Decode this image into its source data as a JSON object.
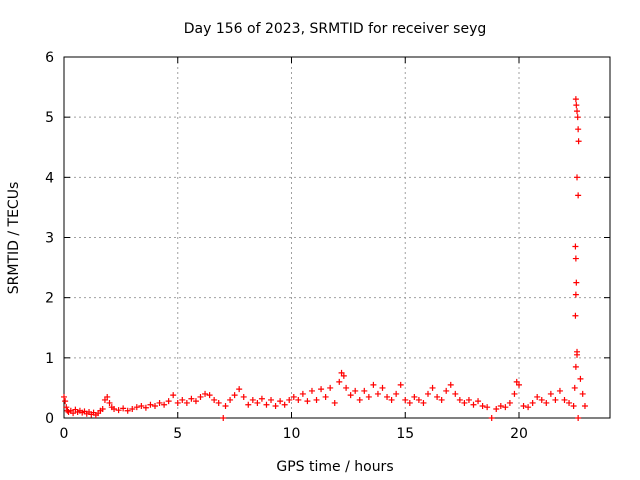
{
  "chart_data": {
    "type": "scatter",
    "title": "Day 156 of 2023, SRMTID for receiver seyg",
    "xlabel": "GPS time / hours",
    "ylabel": "SRMTID / TECUs",
    "xlim": [
      0,
      24
    ],
    "ylim": [
      0,
      6
    ],
    "xticks": [
      0,
      5,
      10,
      15,
      20
    ],
    "yticks": [
      0,
      1,
      2,
      3,
      4,
      5,
      6
    ],
    "grid": true,
    "marker": "plus",
    "series": [
      {
        "color": "#ff0000",
        "points": [
          [
            0.0,
            0.35
          ],
          [
            0.05,
            0.28
          ],
          [
            0.1,
            0.18
          ],
          [
            0.15,
            0.12
          ],
          [
            0.2,
            0.1
          ],
          [
            0.3,
            0.12
          ],
          [
            0.4,
            0.08
          ],
          [
            0.5,
            0.14
          ],
          [
            0.6,
            0.1
          ],
          [
            0.7,
            0.12
          ],
          [
            0.8,
            0.09
          ],
          [
            0.9,
            0.11
          ],
          [
            1.0,
            0.07
          ],
          [
            1.1,
            0.1
          ],
          [
            1.2,
            0.06
          ],
          [
            1.3,
            0.09
          ],
          [
            1.4,
            0.05
          ],
          [
            1.5,
            0.08
          ],
          [
            1.6,
            0.12
          ],
          [
            1.7,
            0.15
          ],
          [
            1.8,
            0.3
          ],
          [
            1.9,
            0.35
          ],
          [
            2.0,
            0.25
          ],
          [
            2.1,
            0.18
          ],
          [
            2.2,
            0.15
          ],
          [
            2.4,
            0.13
          ],
          [
            2.6,
            0.16
          ],
          [
            2.8,
            0.12
          ],
          [
            3.0,
            0.15
          ],
          [
            3.2,
            0.18
          ],
          [
            3.4,
            0.2
          ],
          [
            3.6,
            0.17
          ],
          [
            3.8,
            0.22
          ],
          [
            4.0,
            0.2
          ],
          [
            4.2,
            0.25
          ],
          [
            4.4,
            0.22
          ],
          [
            4.6,
            0.28
          ],
          [
            4.8,
            0.38
          ],
          [
            5.0,
            0.25
          ],
          [
            5.2,
            0.3
          ],
          [
            5.4,
            0.25
          ],
          [
            5.6,
            0.32
          ],
          [
            5.8,
            0.28
          ],
          [
            6.0,
            0.35
          ],
          [
            6.2,
            0.4
          ],
          [
            6.4,
            0.38
          ],
          [
            6.6,
            0.3
          ],
          [
            6.8,
            0.25
          ],
          [
            7.0,
            0.0
          ],
          [
            7.1,
            0.2
          ],
          [
            7.3,
            0.3
          ],
          [
            7.5,
            0.38
          ],
          [
            7.7,
            0.48
          ],
          [
            7.9,
            0.35
          ],
          [
            8.1,
            0.22
          ],
          [
            8.3,
            0.3
          ],
          [
            8.5,
            0.25
          ],
          [
            8.7,
            0.32
          ],
          [
            8.9,
            0.22
          ],
          [
            9.1,
            0.3
          ],
          [
            9.3,
            0.2
          ],
          [
            9.5,
            0.28
          ],
          [
            9.7,
            0.22
          ],
          [
            9.9,
            0.3
          ],
          [
            10.1,
            0.35
          ],
          [
            10.3,
            0.3
          ],
          [
            10.5,
            0.4
          ],
          [
            10.7,
            0.28
          ],
          [
            10.9,
            0.45
          ],
          [
            11.1,
            0.3
          ],
          [
            11.3,
            0.48
          ],
          [
            11.5,
            0.35
          ],
          [
            11.7,
            0.5
          ],
          [
            11.9,
            0.25
          ],
          [
            12.1,
            0.6
          ],
          [
            12.2,
            0.75
          ],
          [
            12.3,
            0.7
          ],
          [
            12.4,
            0.5
          ],
          [
            12.6,
            0.38
          ],
          [
            12.8,
            0.45
          ],
          [
            13.0,
            0.3
          ],
          [
            13.2,
            0.45
          ],
          [
            13.4,
            0.35
          ],
          [
            13.6,
            0.55
          ],
          [
            13.8,
            0.4
          ],
          [
            14.0,
            0.5
          ],
          [
            14.2,
            0.35
          ],
          [
            14.4,
            0.3
          ],
          [
            14.6,
            0.4
          ],
          [
            14.8,
            0.55
          ],
          [
            15.0,
            0.3
          ],
          [
            15.2,
            0.25
          ],
          [
            15.4,
            0.35
          ],
          [
            15.6,
            0.3
          ],
          [
            15.8,
            0.25
          ],
          [
            16.0,
            0.4
          ],
          [
            16.2,
            0.5
          ],
          [
            16.4,
            0.35
          ],
          [
            16.6,
            0.3
          ],
          [
            16.8,
            0.45
          ],
          [
            17.0,
            0.55
          ],
          [
            17.2,
            0.4
          ],
          [
            17.4,
            0.3
          ],
          [
            17.6,
            0.25
          ],
          [
            17.8,
            0.3
          ],
          [
            18.0,
            0.22
          ],
          [
            18.2,
            0.28
          ],
          [
            18.4,
            0.2
          ],
          [
            18.6,
            0.18
          ],
          [
            18.8,
            0.0
          ],
          [
            19.0,
            0.15
          ],
          [
            19.2,
            0.2
          ],
          [
            19.4,
            0.18
          ],
          [
            19.6,
            0.25
          ],
          [
            19.8,
            0.4
          ],
          [
            19.9,
            0.6
          ],
          [
            20.0,
            0.55
          ],
          [
            20.2,
            0.2
          ],
          [
            20.4,
            0.18
          ],
          [
            20.6,
            0.25
          ],
          [
            20.8,
            0.35
          ],
          [
            21.0,
            0.3
          ],
          [
            21.2,
            0.25
          ],
          [
            21.4,
            0.4
          ],
          [
            21.6,
            0.3
          ],
          [
            21.8,
            0.45
          ],
          [
            22.0,
            0.3
          ],
          [
            22.2,
            0.25
          ],
          [
            22.4,
            0.2
          ],
          [
            22.45,
            0.5
          ],
          [
            22.5,
            0.85
          ],
          [
            22.55,
            1.1
          ],
          [
            22.6,
            0.0
          ],
          [
            22.7,
            0.65
          ],
          [
            22.8,
            0.4
          ],
          [
            22.9,
            0.2
          ]
        ]
      },
      {
        "color": "#ff0000",
        "points": [
          [
            22.5,
            5.3
          ],
          [
            22.52,
            5.2
          ],
          [
            22.55,
            5.1
          ],
          [
            22.58,
            5.0
          ],
          [
            22.6,
            4.8
          ],
          [
            22.62,
            4.6
          ],
          [
            22.55,
            4.0
          ],
          [
            22.6,
            3.7
          ],
          [
            22.48,
            2.85
          ],
          [
            22.5,
            2.65
          ],
          [
            22.52,
            2.25
          ],
          [
            22.5,
            2.05
          ],
          [
            22.48,
            1.7
          ],
          [
            22.55,
            1.05
          ]
        ]
      }
    ]
  }
}
